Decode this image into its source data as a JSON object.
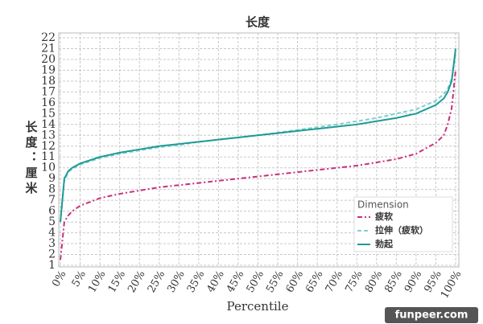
{
  "chart_data": {
    "type": "line",
    "title": "长度",
    "y_label": "长度：厘米",
    "x_label": "Percentile",
    "watermark": "funpeer.com",
    "legend_title": "Dimension",
    "legend_position": "lower right",
    "grid": true,
    "x": [
      0,
      1,
      2,
      3,
      5,
      10,
      15,
      20,
      25,
      30,
      35,
      40,
      45,
      50,
      55,
      60,
      65,
      70,
      75,
      80,
      85,
      90,
      95,
      97,
      98,
      99,
      100
    ],
    "series": [
      {
        "name": "疲软",
        "color": "#c8307a",
        "dash": "6 3 2 3",
        "values": [
          1.5,
          5,
          5.6,
          6.0,
          6.5,
          7.2,
          7.6,
          7.9,
          8.2,
          8.4,
          8.6,
          8.8,
          9.0,
          9.2,
          9.4,
          9.6,
          9.8,
          10.0,
          10.2,
          10.5,
          10.8,
          11.3,
          12.3,
          13.0,
          14.0,
          15.5,
          19
        ]
      },
      {
        "name": "拉伸（疲软）",
        "color": "#7fd0cc",
        "dash": "5 3",
        "values": [
          5,
          8.8,
          9.6,
          9.9,
          10.3,
          10.9,
          11.3,
          11.6,
          11.9,
          12.1,
          12.4,
          12.6,
          12.8,
          13.0,
          13.25,
          13.5,
          13.75,
          14.0,
          14.3,
          14.6,
          15.0,
          15.4,
          16.2,
          16.8,
          17.3,
          18.2,
          20.5
        ]
      },
      {
        "name": "勃起",
        "color": "#1f9a96",
        "dash": "",
        "values": [
          5,
          9.0,
          9.7,
          10.0,
          10.4,
          11.0,
          11.4,
          11.7,
          12.0,
          12.2,
          12.4,
          12.6,
          12.8,
          13.0,
          13.2,
          13.4,
          13.6,
          13.8,
          14.0,
          14.3,
          14.6,
          15.0,
          15.8,
          16.4,
          17.0,
          18.0,
          21
        ]
      }
    ],
    "xlim": [
      0,
      100
    ],
    "ylim": [
      1,
      22
    ],
    "xticks": [
      {
        "value": 0,
        "label": "0%"
      },
      {
        "value": 5,
        "label": "5%"
      },
      {
        "value": 10,
        "label": "10%"
      },
      {
        "value": 15,
        "label": "15%"
      },
      {
        "value": 20,
        "label": "20%"
      },
      {
        "value": 25,
        "label": "25%"
      },
      {
        "value": 30,
        "label": "30%"
      },
      {
        "value": 35,
        "label": "35%"
      },
      {
        "value": 40,
        "label": "40%"
      },
      {
        "value": 45,
        "label": "45%"
      },
      {
        "value": 50,
        "label": "50%"
      },
      {
        "value": 55,
        "label": "55%"
      },
      {
        "value": 60,
        "label": "60%"
      },
      {
        "value": 65,
        "label": "65%"
      },
      {
        "value": 70,
        "label": "70%"
      },
      {
        "value": 75,
        "label": "75%"
      },
      {
        "value": 80,
        "label": "80%"
      },
      {
        "value": 85,
        "label": "85%"
      },
      {
        "value": 90,
        "label": "90%"
      },
      {
        "value": 95,
        "label": "95%"
      },
      {
        "value": 100,
        "label": "100%"
      }
    ],
    "yticks": [
      1,
      2,
      3,
      4,
      5,
      6,
      7,
      8,
      9,
      10,
      11,
      12,
      13,
      14,
      15,
      16,
      17,
      18,
      19,
      20,
      21,
      22
    ]
  }
}
